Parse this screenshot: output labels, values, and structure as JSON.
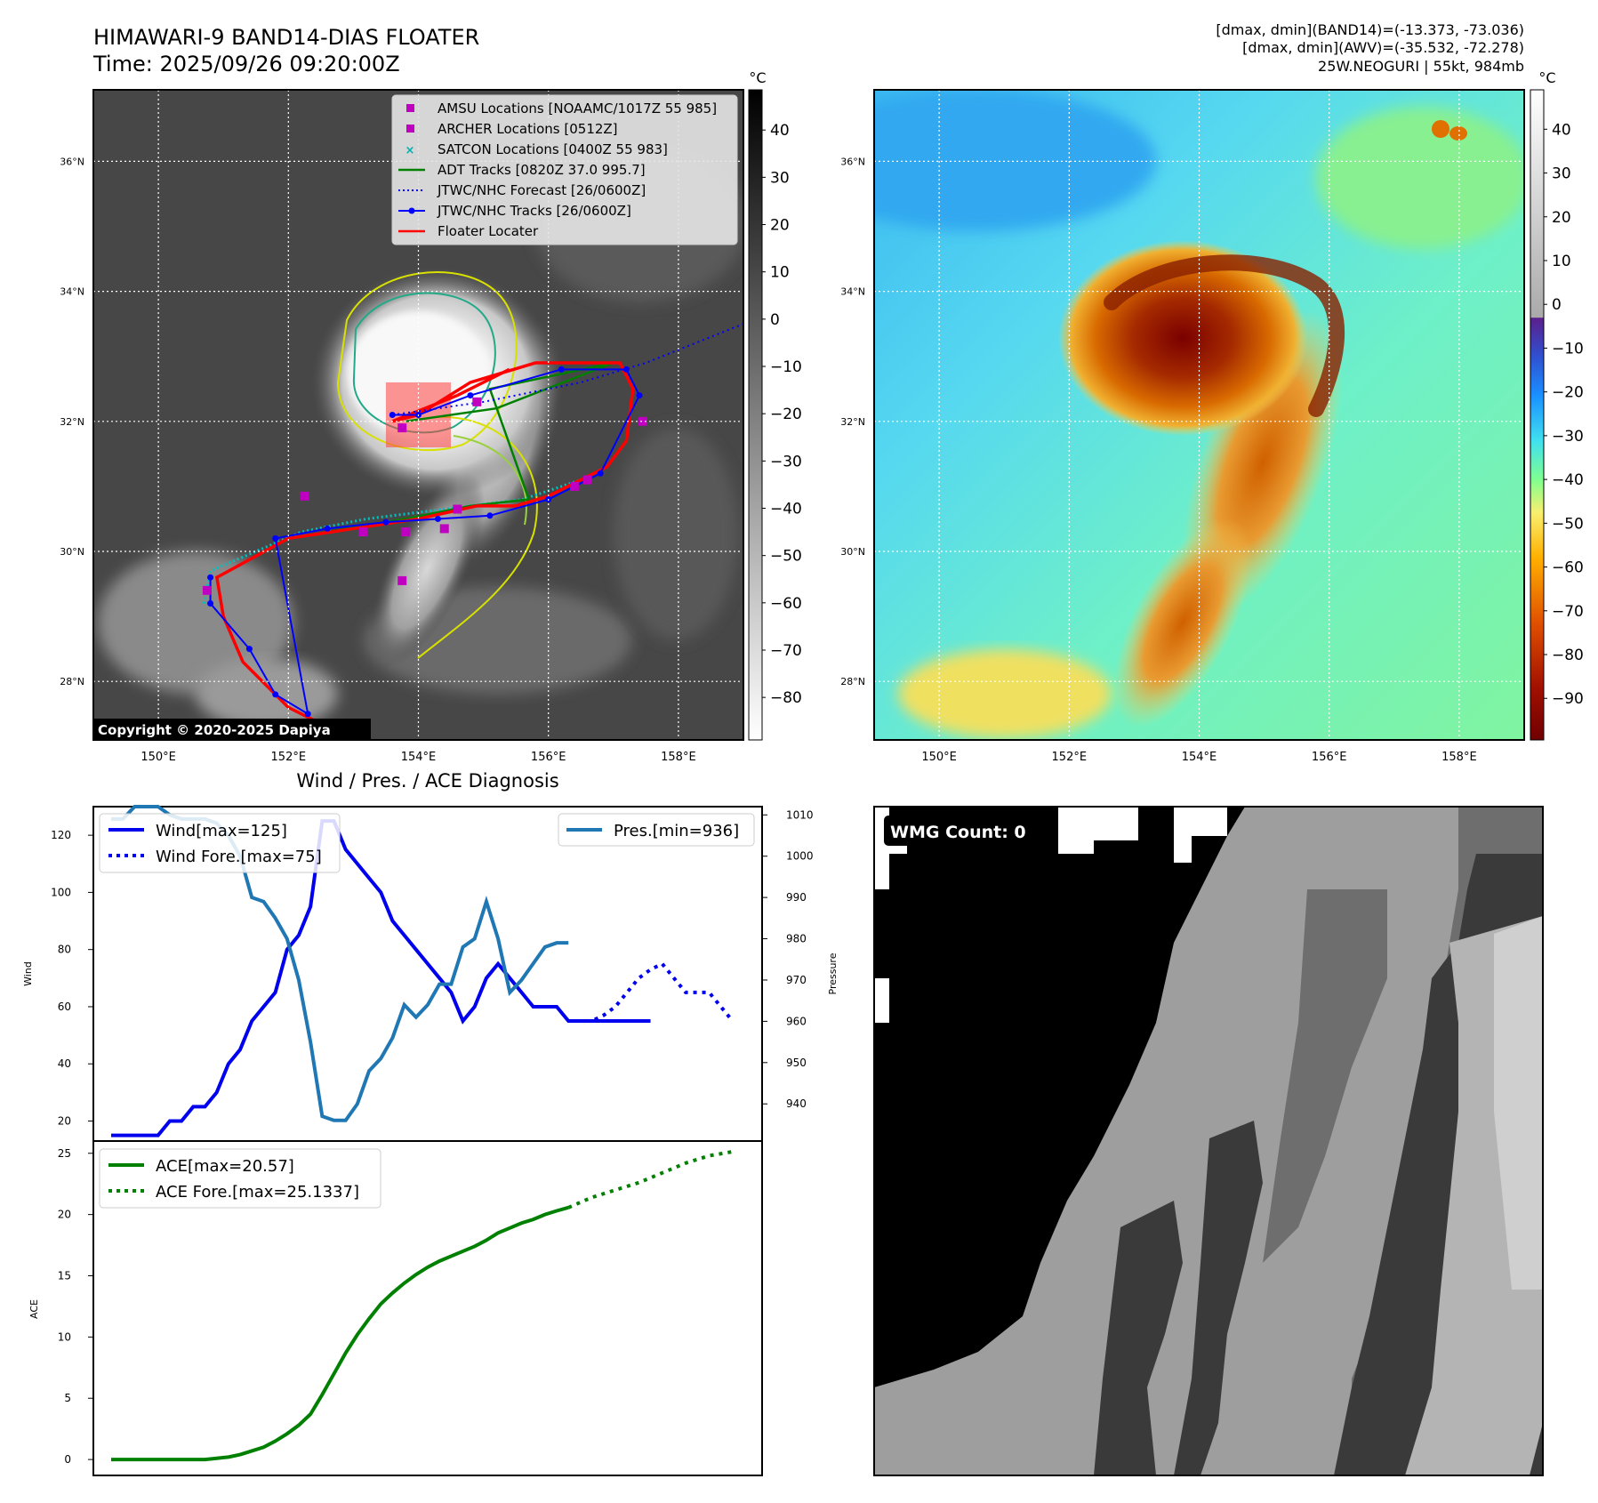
{
  "header": {
    "title_line1": "HIMAWARI-9 BAND14-DIAS FLOATER",
    "title_line2": "Time: 2025/09/26 09:20:00Z",
    "info_line1": "[dmax, dmin](BAND14)=(-13.373, -73.036)",
    "info_line2": "[dmax, dmin](AWV)=(-35.532, -72.278)",
    "info_line3": "25W.NEOGURI | 55kt, 984mb"
  },
  "ir_panel": {
    "lon_ticks": [
      "150°E",
      "152°E",
      "154°E",
      "156°E",
      "158°E"
    ],
    "lat_ticks": [
      "36°N",
      "34°N",
      "32°N",
      "30°N",
      "28°N"
    ],
    "colorbar_unit": "°C",
    "colorbar_ticks": [
      "40",
      "30",
      "20",
      "10",
      "0",
      "−10",
      "−20",
      "−30",
      "−40",
      "−50",
      "−60",
      "−70",
      "−80"
    ],
    "copyright": "Copyright © 2020-2025 Dapiya",
    "legend": [
      {
        "label": "AMSU Locations [NOAAMC/1017Z 55 985]",
        "color": "#c000c0",
        "kind": "square"
      },
      {
        "label": "ARCHER Locations [0512Z]",
        "color": "#c000c0",
        "kind": "square"
      },
      {
        "label": "SATCON Locations [0400Z 55 983]",
        "color": "#00b0b0",
        "kind": "cross"
      },
      {
        "label": "ADT Tracks [0820Z 37.0 995.7]",
        "color": "#008000",
        "kind": "line"
      },
      {
        "label": "JTWC/NHC Forecast [26/0600Z]",
        "color": "#0000ff",
        "kind": "dotted"
      },
      {
        "label": "JTWC/NHC Tracks [26/0600Z]",
        "color": "#0000ff",
        "kind": "line-dot"
      },
      {
        "label": "Floater Locater",
        "color": "#ff0000",
        "kind": "line"
      }
    ],
    "jtwc_track": [
      [
        29.6,
        150.8
      ],
      [
        29.2,
        150.8
      ],
      [
        28.5,
        151.4
      ],
      [
        27.8,
        151.8
      ],
      [
        27.5,
        152.3
      ],
      [
        30.2,
        151.8
      ],
      [
        30.35,
        152.6
      ],
      [
        30.45,
        153.5
      ],
      [
        30.5,
        154.3
      ],
      [
        30.55,
        155.1
      ],
      [
        30.8,
        156.0
      ],
      [
        31.2,
        156.8
      ],
      [
        32.4,
        157.4
      ],
      [
        32.8,
        157.2
      ],
      [
        32.8,
        156.2
      ],
      [
        32.4,
        154.8
      ],
      [
        32.1,
        154.0
      ],
      [
        32.1,
        153.6
      ]
    ],
    "forecast_track": [
      [
        32.1,
        153.6
      ],
      [
        32.3,
        155.0
      ],
      [
        32.6,
        156.5
      ],
      [
        32.9,
        157.5
      ],
      [
        33.5,
        159.0
      ]
    ],
    "cyan_track": [
      [
        29.2,
        150.7
      ],
      [
        29.7,
        150.8
      ],
      [
        30.0,
        151.5
      ],
      [
        30.3,
        152.2
      ],
      [
        30.5,
        153.2
      ],
      [
        30.6,
        154.0
      ],
      [
        30.7,
        154.8
      ],
      [
        30.8,
        155.6
      ],
      [
        31.1,
        156.5
      ]
    ],
    "green_track": [
      [
        30.3,
        152.6
      ],
      [
        30.5,
        153.8
      ],
      [
        30.7,
        154.8
      ],
      [
        30.8,
        155.7
      ],
      [
        32.5,
        155.1
      ],
      [
        32.9,
        157.0
      ],
      [
        32.2,
        155.2
      ],
      [
        32.0,
        153.8
      ]
    ],
    "red_track": [
      [
        27.1,
        153.0
      ],
      [
        27.6,
        152.0
      ],
      [
        28.3,
        151.3
      ],
      [
        29.0,
        151.0
      ],
      [
        29.6,
        150.9
      ],
      [
        30.2,
        152.0
      ],
      [
        30.35,
        153.0
      ],
      [
        30.5,
        154.0
      ],
      [
        30.7,
        154.9
      ],
      [
        30.7,
        155.5
      ],
      [
        30.85,
        156.0
      ],
      [
        31.3,
        156.9
      ],
      [
        31.7,
        157.2
      ],
      [
        32.5,
        157.3
      ],
      [
        32.9,
        157.1
      ],
      [
        32.9,
        155.8
      ],
      [
        32.6,
        154.8
      ],
      [
        32.1,
        154.0
      ],
      [
        32.0,
        153.6
      ],
      [
        32.4,
        154.6
      ],
      [
        32.8,
        155.4
      ]
    ],
    "amsu_points": [
      [
        30.85,
        152.25
      ],
      [
        30.3,
        153.15
      ],
      [
        30.3,
        153.8
      ],
      [
        29.55,
        153.75
      ],
      [
        30.35,
        154.4
      ],
      [
        30.65,
        154.6
      ],
      [
        31.9,
        153.75
      ],
      [
        31.0,
        156.4
      ],
      [
        31.1,
        156.6
      ],
      [
        32.3,
        154.9
      ],
      [
        32.0,
        157.45
      ],
      [
        29.4,
        150.75
      ]
    ],
    "floater_box": {
      "lat_min": 31.6,
      "lat_max": 32.6,
      "lon_min": 153.5,
      "lon_max": 154.5
    }
  },
  "wv_panel": {
    "lon_ticks": [
      "150°E",
      "152°E",
      "154°E",
      "156°E",
      "158°E"
    ],
    "lat_ticks": [
      "36°N",
      "34°N",
      "32°N",
      "30°N",
      "28°N"
    ],
    "colorbar_unit": "°C",
    "colorbar_ticks": [
      "40",
      "30",
      "20",
      "10",
      "0",
      "−10",
      "−20",
      "−30",
      "−40",
      "−50",
      "−60",
      "−70",
      "−80",
      "−90"
    ]
  },
  "wind_chart": {
    "title": "Wind / Pres. / ACE Diagnosis",
    "ylabel_left": "Wind",
    "ylabel_right": "Pressure",
    "left_ticks": [
      20,
      40,
      60,
      80,
      100,
      120
    ],
    "right_ticks": [
      940,
      950,
      960,
      970,
      980,
      990,
      1000,
      1010
    ],
    "legend_left": [
      "Wind[max=125]",
      "Wind Fore.[max=75]"
    ],
    "legend_right": "Pres.[min=936]"
  },
  "ace_chart": {
    "ylabel": "ACE",
    "ticks": [
      0,
      5,
      10,
      15,
      20,
      25
    ],
    "legend": [
      "ACE[max=20.57]",
      "ACE Fore.[max=25.1337]"
    ]
  },
  "wmg_panel": {
    "badge": "WMG Count: 0"
  },
  "chart_data": [
    {
      "type": "line",
      "ylim": [
        13,
        130
      ],
      "series": [
        {
          "name": "Wind[max=125]",
          "color": "#0000ee",
          "style": "solid",
          "x": [
            0,
            1,
            2,
            3,
            4,
            5,
            6,
            7,
            8,
            9,
            10,
            11,
            12,
            13,
            14,
            15,
            16,
            17,
            18,
            19,
            20,
            21,
            22,
            23,
            24,
            25,
            26,
            27,
            28,
            29,
            30,
            31,
            32,
            33,
            34,
            35,
            36,
            37,
            38,
            39,
            40,
            41,
            42,
            43,
            44,
            45,
            46
          ],
          "values": [
            15,
            15,
            15,
            15,
            15,
            20,
            20,
            25,
            25,
            30,
            40,
            45,
            55,
            60,
            65,
            80,
            85,
            95,
            125,
            125,
            115,
            110,
            105,
            100,
            90,
            85,
            80,
            75,
            70,
            65,
            55,
            60,
            70,
            75,
            70,
            65,
            60,
            60,
            60,
            55,
            55,
            55,
            55,
            55,
            55,
            55,
            55
          ]
        },
        {
          "name": "Wind Fore.[max=75]",
          "color": "#0000ee",
          "style": "dotted",
          "x": [
            39,
            40,
            41,
            42,
            43,
            44,
            45,
            46,
            47,
            48,
            49,
            50,
            51,
            52,
            53
          ],
          "values": [
            55,
            55,
            55,
            57,
            60,
            65,
            70,
            73,
            75,
            70,
            65,
            65,
            65,
            60,
            55
          ]
        }
      ]
    },
    {
      "type": "line",
      "ylim": [
        931,
        1012
      ],
      "series": [
        {
          "name": "Pres.[min=936]",
          "color": "#1f77b4",
          "style": "solid",
          "x": [
            0,
            1,
            2,
            3,
            4,
            5,
            6,
            7,
            8,
            9,
            10,
            11,
            12,
            13,
            14,
            15,
            16,
            17,
            18,
            19,
            20,
            21,
            22,
            23,
            24,
            25,
            26,
            27,
            28,
            29,
            30,
            31,
            32,
            33,
            34,
            35,
            36,
            37,
            38,
            39
          ],
          "values": [
            1009,
            1009,
            1012,
            1012,
            1012,
            1010,
            1009,
            1009,
            1009,
            1008,
            1005,
            1000,
            990,
            989,
            985,
            980,
            970,
            955,
            937,
            936,
            936,
            940,
            948,
            951,
            956,
            964,
            961,
            964,
            969,
            969,
            978,
            980,
            989,
            980,
            967,
            970,
            974,
            978,
            979,
            979
          ]
        }
      ]
    },
    {
      "type": "line",
      "ylim": [
        -1.3,
        26.0
      ],
      "series": [
        {
          "name": "ACE[max=20.57]",
          "color": "#008000",
          "style": "solid",
          "x": [
            0,
            1,
            2,
            3,
            4,
            5,
            6,
            7,
            8,
            9,
            10,
            11,
            12,
            13,
            14,
            15,
            16,
            17,
            18,
            19,
            20,
            21,
            22,
            23,
            24,
            25,
            26,
            27,
            28,
            29,
            30,
            31,
            32,
            33,
            34,
            35,
            36,
            37,
            38,
            39
          ],
          "values": [
            0,
            0,
            0,
            0,
            0,
            0,
            0,
            0,
            0,
            0.1,
            0.2,
            0.4,
            0.7,
            1.0,
            1.5,
            2.1,
            2.8,
            3.7,
            5.3,
            7.0,
            8.7,
            10.2,
            11.5,
            12.7,
            13.6,
            14.4,
            15.1,
            15.7,
            16.2,
            16.6,
            17.0,
            17.4,
            17.9,
            18.5,
            18.9,
            19.3,
            19.6,
            20.0,
            20.3,
            20.57
          ]
        },
        {
          "name": "ACE Fore.[max=25.1337]",
          "color": "#008000",
          "style": "dotted",
          "x": [
            39,
            41,
            43,
            45,
            47,
            49,
            51,
            53
          ],
          "values": [
            20.57,
            21.4,
            22.0,
            22.6,
            23.4,
            24.2,
            24.8,
            25.13
          ]
        }
      ]
    }
  ]
}
